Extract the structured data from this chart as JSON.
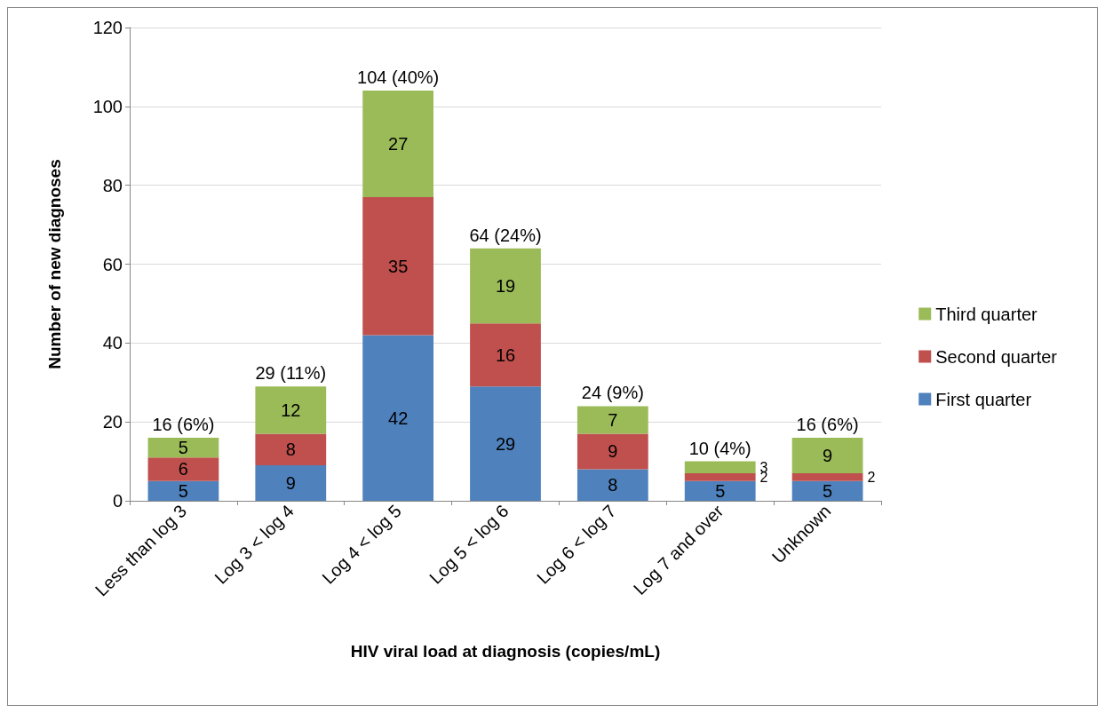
{
  "chart_data": {
    "type": "bar",
    "stacked": true,
    "xlabel": "HIV viral load at diagnosis (copies/mL)",
    "ylabel": "Number of new diagnoses",
    "categories": [
      "Less than log 3",
      "Log 3 < log 4",
      "Log 4 < log 5",
      "Log 5 < log 6",
      "Log 6 < log 7",
      "Log 7 and over",
      "Unknown"
    ],
    "series": [
      {
        "name": "First quarter",
        "color": "#4f81bd",
        "values": [
          5,
          9,
          42,
          29,
          8,
          5,
          5
        ]
      },
      {
        "name": "Second quarter",
        "color": "#c0504d",
        "values": [
          6,
          8,
          35,
          16,
          9,
          2,
          2
        ]
      },
      {
        "name": "Third quarter",
        "color": "#9bbb59",
        "values": [
          5,
          12,
          27,
          19,
          7,
          3,
          9
        ]
      }
    ],
    "totals": [
      "16 (6%)",
      "29 (11%)",
      "104 (40%)",
      "64 (24%)",
      "24 (9%)",
      "10 (4%)",
      "16 (6%)"
    ],
    "ylim": [
      0,
      120
    ],
    "yticks": [
      0,
      20,
      40,
      60,
      80,
      100,
      120
    ],
    "grid": "y",
    "legend": "right",
    "data_labels": true
  }
}
